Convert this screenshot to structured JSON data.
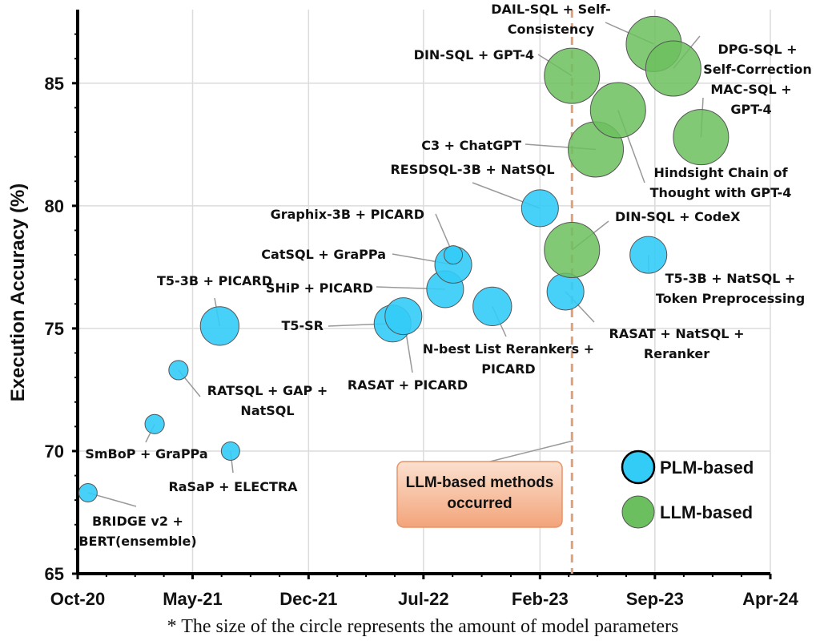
{
  "chart_data": {
    "type": "scatter",
    "title": "",
    "xlabel": "",
    "ylabel": "Execution Accuracy (%)",
    "x_ticks": [
      "Oct-20",
      "May-21",
      "Dec-21",
      "Jul-22",
      "Feb-23",
      "Sep-23",
      "Apr-24"
    ],
    "y_ticks": [
      65,
      70,
      75,
      80,
      85
    ],
    "xlim": [
      "2020-10",
      "2024-04"
    ],
    "ylim": [
      65,
      88
    ],
    "grid": true,
    "colors": {
      "PLM-based": "#33ccf7",
      "LLM-based": "#6cbf5e"
    },
    "legend": {
      "placement": "bottom-right",
      "entries": [
        "PLM-based",
        "LLM-based"
      ]
    },
    "series": [
      {
        "name": "PLM-based",
        "points": [
          {
            "x": "2020-10-20",
            "y": 68.3,
            "size": 1.0,
            "label": "BRIDGE v2 +\nBERT(ensemble)"
          },
          {
            "x": "2021-02-20",
            "y": 71.1,
            "size": 1.05,
            "label": "SmBoP + GraPPa"
          },
          {
            "x": "2021-04-05",
            "y": 73.3,
            "size": 1.05,
            "label": "RATSQL + GAP +\nNatSQL"
          },
          {
            "x": "2021-06-20",
            "y": 75.1,
            "size": 2.1,
            "label": "T5-3B + PICARD"
          },
          {
            "x": "2021-07-10",
            "y": 70.0,
            "size": 1.0,
            "label": "RaSaP + ELECTRA"
          },
          {
            "x": "2022-05-05",
            "y": 75.2,
            "size": 2.0,
            "label": "T5-SR"
          },
          {
            "x": "2022-05-25",
            "y": 75.5,
            "size": 2.0,
            "label": "RASAT + PICARD"
          },
          {
            "x": "2022-08-10",
            "y": 76.6,
            "size": 2.0,
            "label": "SHiP + PICARD"
          },
          {
            "x": "2022-08-25",
            "y": 77.6,
            "size": 2.0,
            "label": "CatSQL + GraPPa"
          },
          {
            "x": "2022-08-25",
            "y": 78.0,
            "size": 1.0,
            "label": "Graphix-3B + PICARD"
          },
          {
            "x": "2022-11-05",
            "y": 75.9,
            "size": 2.1,
            "label": "N-best List Rerankers +\nPICARD"
          },
          {
            "x": "2023-02-01",
            "y": 79.9,
            "size": 2.0,
            "label": "RESDSQL-3B + NatSQL"
          },
          {
            "x": "2023-03-20",
            "y": 76.5,
            "size": 2.0,
            "label": "RASAT + NatSQL +\nReranker"
          },
          {
            "x": "2023-08-20",
            "y": 78.0,
            "size": 2.0,
            "label": "T5-3B + NatSQL +\nToken Preprocessing"
          }
        ]
      },
      {
        "name": "LLM-based",
        "points": [
          {
            "x": "2023-04-01",
            "y": 78.2,
            "size": 3.0,
            "label": "DIN-SQL + CodeX"
          },
          {
            "x": "2023-04-01",
            "y": 85.3,
            "size": 3.0,
            "label": "DIN-SQL + GPT-4"
          },
          {
            "x": "2023-05-15",
            "y": 82.3,
            "size": 3.0,
            "label": "C3 + ChatGPT"
          },
          {
            "x": "2023-06-25",
            "y": 83.9,
            "size": 3.0,
            "label": "Hindsight Chain of\nThought with GPT-4"
          },
          {
            "x": "2023-08-30",
            "y": 86.6,
            "size": 3.0,
            "label": "DAIL-SQL + Self-\nConsistency"
          },
          {
            "x": "2023-10-05",
            "y": 85.6,
            "size": 3.0,
            "label": "DPG-SQL +\nSelf-Correction"
          },
          {
            "x": "2023-11-25",
            "y": 82.8,
            "size": 3.0,
            "label": "MAC-SQL +\nGPT-4"
          }
        ]
      }
    ],
    "vline": {
      "x": "2023-04-01",
      "style": "dashed",
      "color": "#e0a07a"
    },
    "annotations": {
      "callout": "LLM-based methods\noccurred",
      "footnote": "* The size of the circle represents the amount of model parameters"
    }
  }
}
